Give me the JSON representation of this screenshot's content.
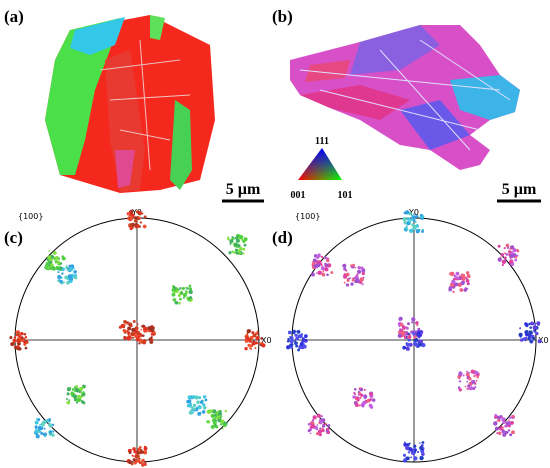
{
  "panels": [
    {
      "label": "(a)",
      "scale_bar": "5 µm"
    },
    {
      "label": "(b)",
      "scale_bar": "5 µm",
      "ipf_key": {
        "top": "111",
        "left": "001",
        "right": "101"
      }
    },
    {
      "label": "(c)",
      "pole_figure": "{100}",
      "y_axis": "Y0",
      "x_axis": "X0"
    },
    {
      "label": "(d)",
      "pole_figure": "{100}",
      "y_axis": "Y0",
      "x_axis": "X0"
    }
  ]
}
